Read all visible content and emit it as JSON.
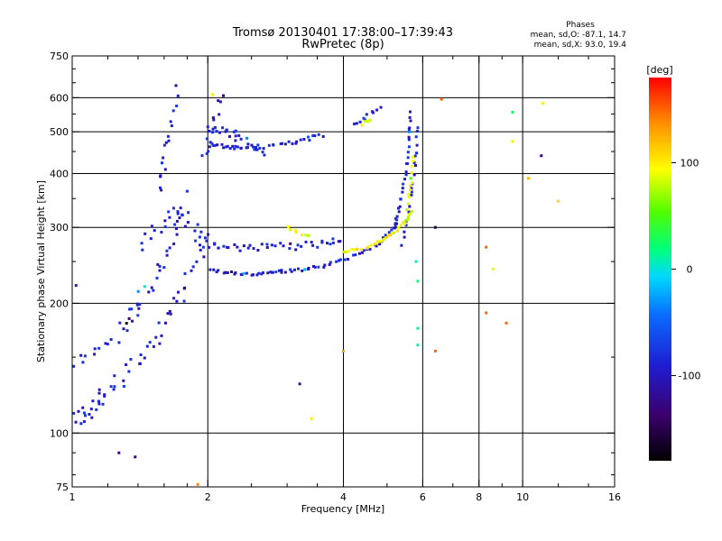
{
  "chart_data": {
    "type": "scatter",
    "title": "Tromsø 20130401 17:38:00–17:39:43",
    "subtitle": "RwPretec (8p)",
    "xlabel": "Frequency [MHz]",
    "ylabel": "Stationary phase Virtual Height [km]",
    "x_scale": "log",
    "y_scale": "log",
    "xlim": [
      1,
      16
    ],
    "ylim": [
      75,
      750
    ],
    "x_ticks": [
      1,
      2,
      4,
      6,
      8,
      10,
      16
    ],
    "x_tick_labels": [
      "1",
      "2",
      "4",
      "6",
      "8",
      "10",
      "16"
    ],
    "x_minor_ticks": [
      1.2,
      1.4,
      1.6,
      1.8,
      2.5,
      3,
      3.5,
      5,
      7,
      9,
      12,
      14
    ],
    "y_ticks": [
      75,
      100,
      200,
      300,
      400,
      500,
      600,
      750
    ],
    "y_tick_labels": [
      "75",
      "100",
      "200",
      "300",
      "400",
      "500",
      "600",
      "750"
    ],
    "grid_x": [
      2,
      4,
      6,
      8,
      10
    ],
    "grid_y": [
      100,
      200,
      300,
      400,
      500,
      600
    ],
    "legend": {
      "title": "Phases",
      "line_o": "mean, sd,O: -87.1, 14.7",
      "line_x": "mean, sd,X:  93.0, 19.4"
    },
    "colorbar": {
      "label": "[deg]",
      "range": [
        -180,
        180
      ],
      "ticks": [
        100,
        0,
        -100
      ],
      "tick_labels": [
        "100",
        "0",
        "-100"
      ]
    },
    "series": [
      {
        "name": "O",
        "phase": -90,
        "traces": [
          {
            "f": [
              1.0,
              1.05,
              1.1,
              1.15,
              1.2,
              1.3,
              1.4,
              1.5,
              1.6,
              1.7,
              1.8,
              1.9,
              2.0
            ],
            "h": [
              108,
              110,
              114,
              118,
              124,
              134,
              146,
              160,
              178,
              200,
              225,
              255,
              280
            ],
            "jitter": 0.09,
            "n": 60
          },
          {
            "f": [
              1.0,
              1.1,
              1.2,
              1.3,
              1.4
            ],
            "h": [
              145,
              150,
              160,
              172,
              186
            ],
            "jitter": 0.06,
            "n": 16
          },
          {
            "f": [
              1.3,
              1.4,
              1.5,
              1.6,
              1.7,
              1.8
            ],
            "h": [
              180,
              200,
              220,
              250,
              300,
              360
            ],
            "jitter": 0.09,
            "n": 30
          },
          {
            "f": [
              1.4,
              1.5,
              1.6,
              1.7,
              1.8,
              1.9,
              2.0
            ],
            "h": [
              270,
              290,
              310,
              330,
              310,
              290,
              275
            ],
            "jitter": 0.08,
            "n": 24
          },
          {
            "f": [
              1.55,
              1.6,
              1.65,
              1.7
            ],
            "h": [
              360,
              420,
              500,
              600
            ],
            "jitter": 0.05,
            "n": 16
          },
          {
            "f": [
              2.0,
              2.2,
              2.4,
              2.6,
              2.8,
              3.0,
              3.3,
              3.6,
              4.0,
              4.4,
              4.8,
              5.1,
              5.3
            ],
            "h": [
              240,
              236,
              234,
              234,
              236,
              238,
              240,
              244,
              252,
              262,
              276,
              294,
              310
            ],
            "jitter": 0.015,
            "n": 70
          },
          {
            "f": [
              2.0,
              2.2,
              2.5,
              2.8,
              3.2,
              3.6,
              4.0
            ],
            "h": [
              275,
              270,
              268,
              270,
              272,
              275,
              280
            ],
            "jitter": 0.04,
            "n": 40
          },
          {
            "f": [
              5.2,
              5.35,
              5.5,
              5.6,
              5.65
            ],
            "h": [
              300,
              340,
              400,
              480,
              560
            ],
            "jitter": 0.02,
            "n": 28
          },
          {
            "f": [
              5.4,
              5.55,
              5.7,
              5.8,
              5.85
            ],
            "h": [
              270,
              320,
              380,
              450,
              520
            ],
            "jitter": 0.02,
            "n": 20
          },
          {
            "f": [
              2.0,
              2.2,
              2.4,
              2.8,
              3.2,
              3.6
            ],
            "h": [
              470,
              462,
              456,
              462,
              476,
              492
            ],
            "jitter": 0.02,
            "n": 40
          },
          {
            "f": [
              2.0,
              2.2,
              2.4,
              2.7
            ],
            "h": [
              520,
              500,
              480,
              440
            ],
            "jitter": 0.05,
            "n": 24
          },
          {
            "f": [
              1.95,
              2.05,
              2.15
            ],
            "h": [
              420,
              520,
              600
            ],
            "jitter": 0.06,
            "n": 14
          },
          {
            "f": [
              4.2,
              4.5,
              4.9
            ],
            "h": [
              520,
              540,
              580
            ],
            "jitter": 0.03,
            "n": 10
          }
        ]
      },
      {
        "name": "X",
        "phase": 95,
        "traces": [
          {
            "f": [
              4.0,
              4.4,
              4.8,
              5.2,
              5.5,
              5.7
            ],
            "h": [
              262,
              268,
              278,
              292,
              310,
              330
            ],
            "jitter": 0.015,
            "n": 36
          },
          {
            "f": [
              5.55,
              5.65,
              5.7
            ],
            "h": [
              330,
              380,
              440
            ],
            "jitter": 0.02,
            "n": 12
          },
          {
            "f": [
              3.0,
              3.2,
              3.4
            ],
            "h": [
              300,
              292,
              286
            ],
            "jitter": 0.02,
            "n": 8
          },
          {
            "f": [
              4.4,
              4.6
            ],
            "h": [
              520,
              530
            ],
            "jitter": 0.02,
            "n": 5
          }
        ]
      }
    ],
    "scattered_points": [
      {
        "f": 8.3,
        "h": 270,
        "phase": 150
      },
      {
        "f": 8.3,
        "h": 190,
        "phase": 150
      },
      {
        "f": 9.2,
        "h": 180,
        "phase": 150
      },
      {
        "f": 6.4,
        "h": 155,
        "phase": 150
      },
      {
        "f": 8.6,
        "h": 240,
        "phase": 90
      },
      {
        "f": 9.5,
        "h": 555,
        "phase": 30
      },
      {
        "f": 11.1,
        "h": 582,
        "phase": 100
      },
      {
        "f": 10.3,
        "h": 390,
        "phase": 120
      },
      {
        "f": 11.0,
        "h": 440,
        "phase": -130
      },
      {
        "f": 12.0,
        "h": 345,
        "phase": 110
      },
      {
        "f": 1.27,
        "h": 90,
        "phase": -120
      },
      {
        "f": 1.38,
        "h": 88,
        "phase": -130
      },
      {
        "f": 3.4,
        "h": 108,
        "phase": 100
      },
      {
        "f": 3.2,
        "h": 130,
        "phase": -110
      },
      {
        "f": 4.0,
        "h": 155,
        "phase": 130
      },
      {
        "f": 6.6,
        "h": 595,
        "phase": 150
      },
      {
        "f": 6.4,
        "h": 300,
        "phase": -150
      },
      {
        "f": 5.8,
        "h": 250,
        "phase": 10
      },
      {
        "f": 5.85,
        "h": 225,
        "phase": 20
      },
      {
        "f": 5.85,
        "h": 175,
        "phase": 15
      },
      {
        "f": 5.85,
        "h": 160,
        "phase": 10
      },
      {
        "f": 1.9,
        "h": 76,
        "phase": 140
      },
      {
        "f": 2.05,
        "h": 610,
        "phase": 100
      },
      {
        "f": 1.7,
        "h": 640,
        "phase": -120
      },
      {
        "f": 1.02,
        "h": 220,
        "phase": -100
      },
      {
        "f": 9.5,
        "h": 475,
        "phase": 100
      }
    ]
  }
}
